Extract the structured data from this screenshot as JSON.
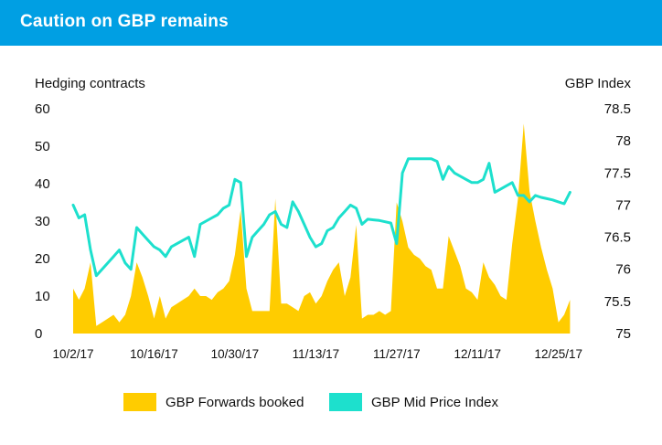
{
  "header": {
    "title": "Caution on GBP remains"
  },
  "colors": {
    "header_bg": "#009fe3",
    "area": "#ffcc00",
    "line": "#1de0cd"
  },
  "chart_data": {
    "type": "area+line",
    "xlabel": "",
    "y_left_label": "Hedging contracts",
    "y_right_label": "GBP Index",
    "y_left_ticks": [
      "60",
      "50",
      "40",
      "30",
      "20",
      "10",
      "0"
    ],
    "y_right_ticks": [
      "78.5",
      "78",
      "77.5",
      "77",
      "76.5",
      "76",
      "75.5",
      "75"
    ],
    "y_left_lim": [
      0,
      60
    ],
    "y_right_lim": [
      75,
      78.5
    ],
    "x_ticks": [
      "10/2/17",
      "10/16/17",
      "10/30/17",
      "11/13/17",
      "11/27/17",
      "12/11/17",
      "12/25/17"
    ],
    "x_tick_days": [
      0,
      14,
      28,
      42,
      56,
      70,
      84
    ],
    "x_lim_days": [
      0,
      88
    ],
    "grid": false,
    "legend_position": "bottom",
    "series": [
      {
        "name": "GBP Forwards booked",
        "kind": "area",
        "axis": "left",
        "color": "#ffcc00",
        "x_days": [
          0,
          1,
          2,
          3,
          4,
          5,
          6,
          7,
          8,
          9,
          10,
          11,
          12,
          13,
          14,
          15,
          16,
          17,
          18,
          19,
          20,
          21,
          22,
          23,
          24,
          25,
          26,
          27,
          28,
          29,
          30,
          31,
          32,
          33,
          34,
          35,
          36,
          37,
          38,
          39,
          40,
          41,
          42,
          43,
          44,
          45,
          46,
          47,
          48,
          49,
          50,
          51,
          52,
          53,
          54,
          55,
          56,
          57,
          58,
          59,
          60,
          61,
          62,
          63,
          64,
          65,
          66,
          67,
          68,
          69,
          70,
          71,
          72,
          73,
          74,
          75,
          76,
          77,
          78,
          79,
          80,
          81,
          82,
          83,
          84,
          85,
          86
        ],
        "values": [
          12,
          9,
          12,
          19,
          2,
          3,
          4,
          5,
          3,
          5,
          10,
          19,
          15,
          10,
          4,
          10,
          4,
          7,
          8,
          9,
          10,
          12,
          10,
          10,
          9,
          11,
          12,
          14,
          21,
          33,
          12,
          6,
          6,
          6,
          6,
          36,
          8,
          8,
          7,
          6,
          10,
          11,
          8,
          10,
          14,
          17,
          19,
          10,
          15,
          29,
          4,
          5,
          5,
          6,
          5,
          6,
          35,
          30,
          23,
          21,
          20,
          18,
          17,
          12,
          12,
          26,
          22,
          18,
          12,
          11,
          9,
          19,
          15,
          13,
          10,
          9,
          24,
          36,
          56,
          38,
          30,
          23,
          17,
          12,
          3,
          5,
          9
        ]
      },
      {
        "name": "GBP Mid Price Index",
        "kind": "line",
        "axis": "right",
        "color": "#1de0cd",
        "x_days": [
          0,
          1,
          2,
          3,
          4,
          5,
          6,
          7,
          8,
          9,
          10,
          11,
          12,
          13,
          14,
          15,
          16,
          17,
          18,
          19,
          20,
          21,
          22,
          23,
          24,
          25,
          26,
          27,
          28,
          29,
          30,
          31,
          32,
          33,
          34,
          35,
          36,
          37,
          38,
          39,
          40,
          41,
          42,
          43,
          44,
          45,
          46,
          47,
          48,
          49,
          50,
          51,
          52,
          53,
          54,
          55,
          56,
          57,
          58,
          59,
          60,
          61,
          62,
          63,
          64,
          65,
          66,
          67,
          68,
          69,
          70,
          71,
          72,
          73,
          74,
          75,
          76,
          77,
          78,
          79,
          80,
          81,
          82,
          83,
          84,
          85,
          86
        ],
        "values": [
          77.0,
          76.8,
          76.85,
          76.3,
          75.9,
          76.0,
          76.1,
          76.2,
          76.3,
          76.1,
          76.0,
          76.65,
          76.55,
          76.45,
          76.35,
          76.3,
          76.2,
          76.35,
          76.4,
          76.45,
          76.5,
          76.2,
          76.7,
          76.75,
          76.8,
          76.85,
          76.95,
          77.0,
          77.4,
          77.35,
          76.2,
          76.5,
          76.6,
          76.7,
          76.85,
          76.9,
          76.7,
          76.65,
          77.05,
          76.9,
          76.7,
          76.5,
          76.35,
          76.4,
          76.6,
          76.65,
          76.8,
          76.9,
          77.0,
          76.95,
          76.7,
          76.78,
          76.77,
          76.76,
          76.74,
          76.72,
          76.4,
          77.5,
          77.72,
          77.72,
          77.72,
          77.72,
          77.72,
          77.68,
          77.4,
          77.6,
          77.5,
          77.45,
          77.4,
          77.35,
          77.35,
          77.4,
          77.65,
          77.2,
          77.25,
          77.3,
          77.35,
          77.15,
          77.15,
          77.05,
          77.15,
          77.12,
          77.1,
          77.08,
          77.05,
          77.02,
          77.2
        ]
      }
    ]
  }
}
